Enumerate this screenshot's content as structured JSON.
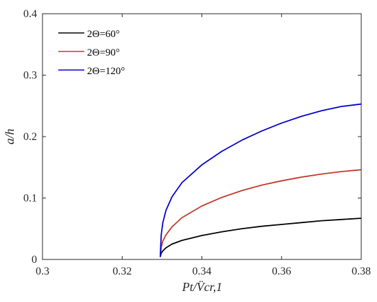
{
  "chart_data": {
    "type": "line",
    "title": "",
    "xlabel": "Pt/V̈cr,1",
    "ylabel": "a/h",
    "xlim": [
      0.3,
      0.38
    ],
    "ylim": [
      0,
      0.4
    ],
    "xticks": [
      "0.3",
      "0.32",
      "0.34",
      "0.36",
      "0.38"
    ],
    "yticks": [
      "0",
      "0.1",
      "0.2",
      "0.3",
      "0.4"
    ],
    "grid": false,
    "legend_position": "top-left",
    "series": [
      {
        "name": "2Θ=60°",
        "color": "#000000",
        "x": [
          0.32955,
          0.3298,
          0.3302,
          0.331,
          0.3325,
          0.335,
          0.34,
          0.345,
          0.35,
          0.355,
          0.36,
          0.365,
          0.37,
          0.375,
          0.38
        ],
        "y": [
          0.004,
          0.01,
          0.014,
          0.019,
          0.025,
          0.031,
          0.039,
          0.045,
          0.05,
          0.054,
          0.057,
          0.06,
          0.063,
          0.065,
          0.067
        ]
      },
      {
        "name": "2Θ=90°",
        "color": "#c0392b",
        "x": [
          0.32955,
          0.3298,
          0.3302,
          0.331,
          0.3325,
          0.335,
          0.34,
          0.345,
          0.35,
          0.355,
          0.36,
          0.365,
          0.37,
          0.375,
          0.38
        ],
        "y": [
          0.004,
          0.02,
          0.03,
          0.04,
          0.053,
          0.068,
          0.087,
          0.101,
          0.112,
          0.121,
          0.128,
          0.134,
          0.139,
          0.143,
          0.146
        ]
      },
      {
        "name": "2Θ=120°",
        "color": "#0000cc",
        "x": [
          0.32955,
          0.3298,
          0.3302,
          0.331,
          0.3325,
          0.335,
          0.34,
          0.345,
          0.35,
          0.355,
          0.36,
          0.365,
          0.37,
          0.375,
          0.38
        ],
        "y": [
          0.004,
          0.04,
          0.06,
          0.08,
          0.102,
          0.125,
          0.154,
          0.176,
          0.194,
          0.209,
          0.222,
          0.233,
          0.242,
          0.249,
          0.253
        ]
      }
    ]
  }
}
